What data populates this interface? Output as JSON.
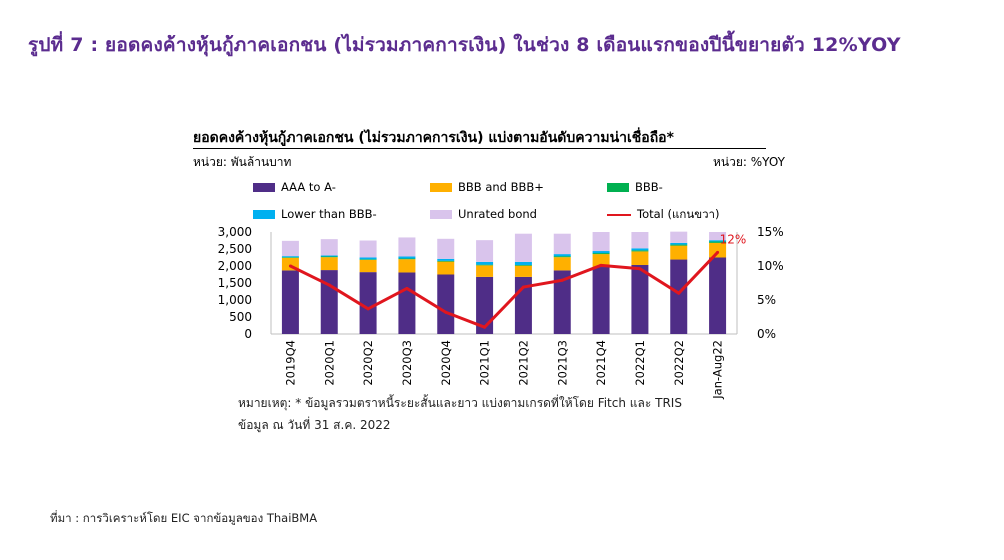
{
  "page": {
    "title": "รูปที่ 7 : ยอดคงค้างหุ้นกู้ภาคเอกชน (ไม่รวมภาคการเงิน) ในช่วง 8 เดือนแรกของปีนี้ขยายตัว 12%YOY",
    "note_line1": "หมายเหตุ: * ข้อมูลรวมตราหนี้ระยะสั้นและยาว แบ่งตามเกรดที่ให้โดย Fitch และ TRIS",
    "note_line2": "ข้อมูล ณ วันที่ 31 ส.ค. 2022",
    "source": "ที่มา : การวิเคราะห์โดย EIC จากข้อมูลของ ThaiBMA"
  },
  "chart_data": {
    "type": "bar",
    "stacked": true,
    "title": "ยอดคงค้างหุ้นกู้ภาคเอกชน (ไม่รวมภาคการเงิน) แบ่งตามอันดับความน่าเชื่อถือ*",
    "ylabel_left": "หน่วย: พันล้านบาท",
    "ylabel_right": "หน่วย: %YOY",
    "categories": [
      "2019Q4",
      "2020Q1",
      "2020Q2",
      "2020Q3",
      "2020Q4",
      "2021Q1",
      "2021Q2",
      "2021Q3",
      "2021Q4",
      "2022Q1",
      "2022Q2",
      "Jan-Aug22"
    ],
    "ylim_left": [
      0,
      3000
    ],
    "yticks_left": [
      "0",
      "500",
      "1,000",
      "1,500",
      "2,000",
      "2,500",
      "3,000"
    ],
    "ylim_right": [
      0,
      15
    ],
    "yticks_right": [
      "0%",
      "5%",
      "10%",
      "15%"
    ],
    "series": [
      {
        "name": "AAA to A-",
        "color": "#4f2d87",
        "values": [
          1870,
          1880,
          1820,
          1810,
          1750,
          1680,
          1680,
          1870,
          1970,
          2030,
          2190,
          2250
        ]
      },
      {
        "name": "BBB and BBB+",
        "color": "#ffb000",
        "values": [
          370,
          380,
          360,
          390,
          380,
          340,
          330,
          390,
          380,
          400,
          410,
          430
        ]
      },
      {
        "name": "BBB-",
        "color": "#00b050",
        "values": [
          20,
          20,
          20,
          20,
          20,
          20,
          20,
          30,
          30,
          30,
          30,
          40
        ]
      },
      {
        "name": "Lower than BBB-",
        "color": "#00b0f0",
        "values": [
          30,
          30,
          50,
          60,
          60,
          80,
          90,
          60,
          60,
          60,
          50,
          40
        ]
      },
      {
        "name": "Unrated bond",
        "color": "#d9c4ec",
        "values": [
          450,
          480,
          500,
          560,
          590,
          640,
          830,
          600,
          560,
          480,
          330,
          240
        ]
      },
      {
        "name": "Total (แกนขวา)",
        "color": "#e0161e",
        "type": "line",
        "axis": "right",
        "values": [
          10.0,
          7.2,
          3.7,
          6.7,
          3.2,
          1.0,
          6.9,
          7.9,
          10.1,
          9.6,
          6.0,
          12.0
        ]
      }
    ],
    "annotation": "12%",
    "grid": false,
    "legend_position": "top"
  }
}
